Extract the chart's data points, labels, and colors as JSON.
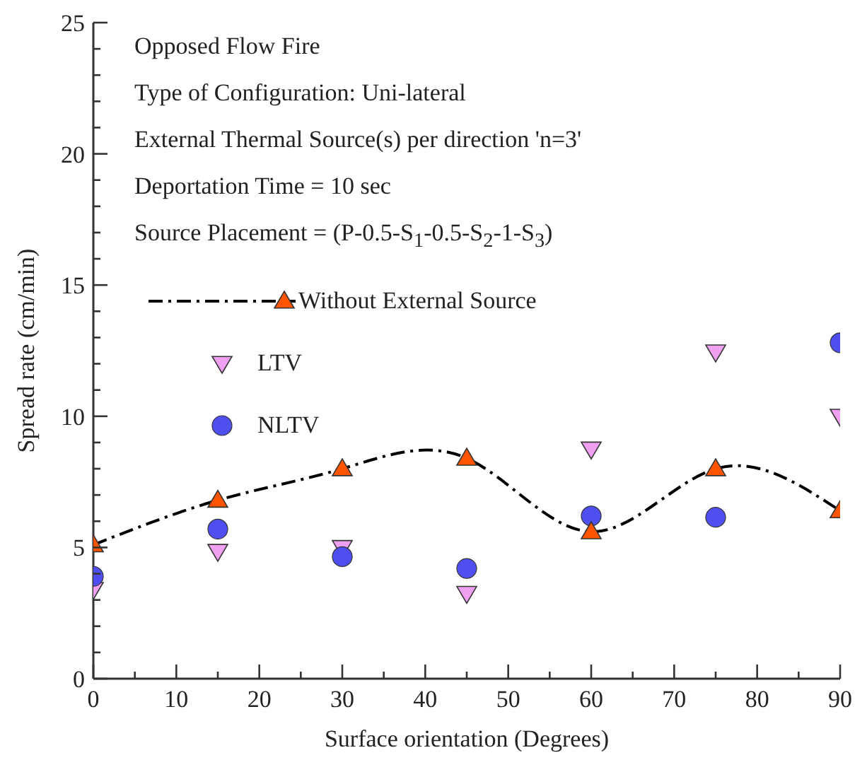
{
  "chart_data": {
    "type": "scatter",
    "xlabel": "Surface orientation (Degrees)",
    "ylabel": "Spread rate (cm/min)",
    "x": [
      0,
      15,
      30,
      45,
      60,
      75,
      90
    ],
    "xlim": [
      0,
      90
    ],
    "xticks": [
      0,
      {
        "value": 5,
        "label": null
      },
      10,
      {
        "value": 15,
        "label": null
      },
      20,
      {
        "value": 25,
        "label": null
      },
      30,
      {
        "value": 35,
        "label": null
      },
      40,
      {
        "value": 45,
        "label": null
      },
      50,
      {
        "value": 55,
        "label": null
      },
      60,
      {
        "value": 65,
        "label": null
      },
      70,
      {
        "value": 75,
        "label": null
      },
      80,
      {
        "value": 85,
        "label": null
      },
      90
    ],
    "ylim": [
      0,
      25
    ],
    "yticks": [
      0,
      {
        "value": 1,
        "label": null
      },
      {
        "value": 2,
        "label": null
      },
      {
        "value": 3,
        "label": null
      },
      {
        "value": 4,
        "label": null
      },
      5,
      {
        "value": 6,
        "label": null
      },
      {
        "value": 7,
        "label": null
      },
      {
        "value": 8,
        "label": null
      },
      {
        "value": 9,
        "label": null
      },
      10,
      {
        "value": 11,
        "label": null
      },
      {
        "value": 12,
        "label": null
      },
      {
        "value": 13,
        "label": null
      },
      {
        "value": 14,
        "label": null
      },
      15,
      {
        "value": 16,
        "label": null
      },
      {
        "value": 17,
        "label": null
      },
      {
        "value": 18,
        "label": null
      },
      {
        "value": 19,
        "label": null
      },
      20,
      {
        "value": 21,
        "label": null
      },
      {
        "value": 22,
        "label": null
      },
      {
        "value": 23,
        "label": null
      },
      {
        "value": 24,
        "label": null
      },
      25
    ],
    "legend": "left",
    "annotations": [
      "Opposed Flow Fire",
      "Type of Configuration: Uni-lateral",
      "External Thermal Source(s) per direction 'n=3'",
      "Deportation Time = 10 sec",
      "Source Placement = (P-0.5-S$_{1}$-0.5-S$_{2}$-1-S$_{3}$)"
    ],
    "series": [
      {
        "name": "Without External Source",
        "type": "line",
        "color": "#ff5500",
        "marker": "triangle",
        "line_style": "dashdot",
        "values": [
          5.1,
          6.8,
          8.0,
          8.4,
          5.6,
          8.0,
          6.4
        ]
      },
      {
        "name": "LTV",
        "color": "#f0a0f0",
        "marker": "triangle-down",
        "values": [
          3.4,
          4.85,
          5.0,
          3.25,
          8.75,
          12.45,
          10.0
        ]
      },
      {
        "name": "NLTV",
        "color": "#4f4ff0",
        "marker": "circle",
        "values": [
          3.9,
          5.7,
          4.65,
          4.2,
          6.2,
          6.15,
          12.8
        ]
      }
    ]
  }
}
